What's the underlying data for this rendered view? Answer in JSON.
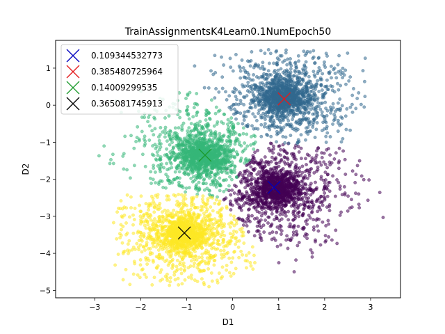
{
  "chart_data": {
    "type": "scatter",
    "title": "TrainAssignmentsK4Learn0.1NumEpoch50",
    "xlabel": "D1",
    "ylabel": "D2",
    "xlim": [
      -3.85,
      3.65
    ],
    "ylim": [
      -5.2,
      1.75
    ],
    "xticks": [
      -3,
      -2,
      -1,
      0,
      1,
      2,
      3
    ],
    "yticks": [
      1,
      0,
      -1,
      -2,
      -3,
      -4,
      -5
    ],
    "grid": false,
    "legend_position": "top-left",
    "point_alpha": 0.55,
    "clusters": [
      {
        "id": "purple",
        "color": "#440154",
        "center": [
          0.95,
          -2.25
        ],
        "count": 1500,
        "extent": {
          "x": [
            -0.5,
            3.3
          ],
          "y": [
            -4.5,
            -0.9
          ]
        }
      },
      {
        "id": "blue",
        "color": "#31688e",
        "center": [
          1.1,
          0.2
        ],
        "count": 1500,
        "extent": {
          "x": [
            -1.2,
            2.9
          ],
          "y": [
            -1.3,
            1.5
          ]
        }
      },
      {
        "id": "green",
        "color": "#35b779",
        "center": [
          -0.6,
          -1.35
        ],
        "count": 1500,
        "extent": {
          "x": [
            -3.7,
            0.7
          ],
          "y": [
            -3.0,
            0.8
          ]
        }
      },
      {
        "id": "yellow",
        "color": "#fde725",
        "center": [
          -1.05,
          -3.45
        ],
        "count": 1500,
        "extent": {
          "x": [
            -2.6,
            0.5
          ],
          "y": [
            -4.9,
            -2.4
          ]
        }
      }
    ],
    "centroid_markers": [
      {
        "label": "0.109344532773",
        "color": "#0000bf",
        "x": 0.9,
        "y": -2.22
      },
      {
        "label": "0.385480725964",
        "color": "#e31a1c",
        "x": 1.12,
        "y": 0.17
      },
      {
        "label": "0.14009299535",
        "color": "#1a9a2a",
        "x": -0.6,
        "y": -1.35
      },
      {
        "label": "0.365081745913",
        "color": "#000000",
        "x": -1.05,
        "y": -3.45
      }
    ]
  }
}
